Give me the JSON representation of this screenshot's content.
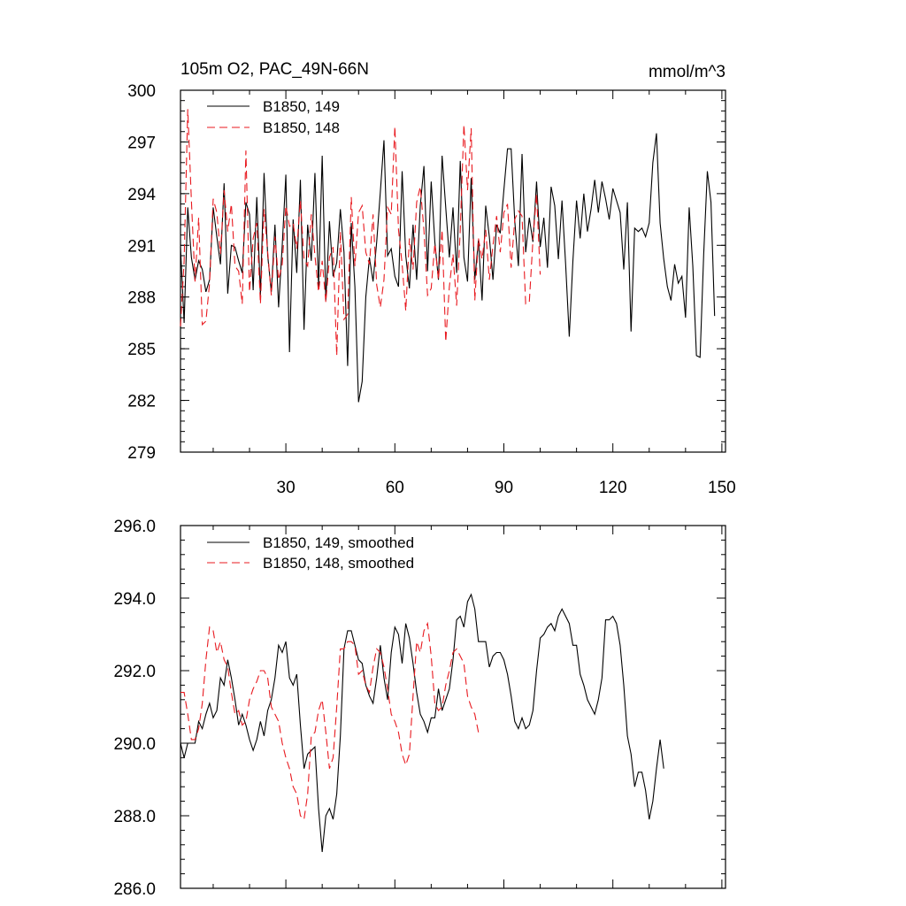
{
  "chart_data": [
    {
      "type": "line",
      "title": "105m O2, PAC_49N-66N",
      "units": "mmol/m^3",
      "ylim": [
        279,
        300
      ],
      "yticks": [
        "279",
        "282",
        "285",
        "288",
        "291",
        "294",
        "297",
        "300"
      ],
      "xlim": [
        1,
        151
      ],
      "xticks": [
        "30",
        "60",
        "90",
        "120",
        "150"
      ],
      "legend_position": "top-left",
      "series": [
        {
          "name": "B1850, 149",
          "color": "#000000",
          "style": "solid",
          "values": [
            290.9,
            286.5,
            293.2,
            290.3,
            289.0,
            290.1,
            289.6,
            288.3,
            289.0,
            293.2,
            291.5,
            289.9,
            294.6,
            288.2,
            291.0,
            290.9,
            290.1,
            289.4,
            293.5,
            292.8,
            288.4,
            293.8,
            288.1,
            295.2,
            290.4,
            288.3,
            292.2,
            287.4,
            291.0,
            295.1,
            284.8,
            292.5,
            289.4,
            294.8,
            286.1,
            292.2,
            290.1,
            295.2,
            288.6,
            296.2,
            287.8,
            292.4,
            289.2,
            290.0,
            293.1,
            290.6,
            284.0,
            292.3,
            288.6,
            281.9,
            283.1,
            288.0,
            290.3,
            288.9,
            291.2,
            294.1,
            297.1,
            290.4,
            290.8,
            289.2,
            288.6,
            295.3,
            290.4,
            288.5,
            292.2,
            289.0,
            293.3,
            295.6,
            289.5,
            294.7,
            291.2,
            289.0,
            296.2,
            293.2,
            290.3,
            293.2,
            289.4,
            295.9,
            290.3,
            288.9,
            294.9,
            289.0,
            291.3,
            287.8,
            293.3,
            291.5,
            289.0,
            292.2,
            291.7,
            294.2,
            296.6,
            296.6,
            292.4,
            289.8,
            296.3,
            290.6,
            292.6,
            291.2,
            294.7,
            290.9,
            292.6,
            289.7,
            294.4,
            293.3,
            290.2,
            293.6,
            289.9,
            285.7,
            290.1,
            293.6,
            291.4,
            294.0,
            291.8,
            293.1,
            294.8,
            292.9,
            294.7,
            293.7,
            292.5,
            294.3,
            293.6,
            292.9,
            289.6,
            293.5,
            286.0,
            292.0,
            291.8,
            292.0,
            291.5,
            292.3,
            295.8,
            297.5,
            292.3,
            290.2,
            288.6,
            287.8,
            289.9,
            288.8,
            289.2,
            286.8,
            293.2,
            289.8,
            284.6,
            284.5,
            290.5,
            295.3,
            293.5,
            286.9
          ]
        },
        {
          "name": "B1850, 148",
          "color": "#e8191f",
          "style": "dashed",
          "values": [
            286.3,
            290.1,
            298.9,
            293.6,
            288.9,
            292.6,
            286.4,
            286.6,
            288.8,
            293.7,
            292.9,
            290.5,
            294.2,
            291.8,
            293.4,
            289.8,
            289.5,
            287.6,
            296.5,
            288.3,
            291.4,
            292.3,
            287.6,
            293.1,
            290.6,
            288.1,
            291.5,
            289.0,
            289.9,
            293.3,
            292.1,
            292.3,
            290.8,
            293.6,
            290.2,
            289.8,
            292.8,
            290.4,
            288.3,
            290.1,
            287.7,
            290.3,
            290.9,
            284.6,
            291.8,
            286.7,
            287.0,
            293.8,
            289.8,
            292.9,
            293.3,
            290.6,
            289.9,
            292.8,
            288.7,
            287.4,
            289.0,
            293.2,
            292.8,
            297.9,
            291.9,
            289.9,
            287.2,
            291.4,
            289.6,
            293.5,
            294.4,
            291.9,
            288.1,
            288.5,
            291.1,
            289.0,
            291.9,
            285.4,
            288.6,
            290.5,
            287.5,
            291.9,
            298.0,
            294.2,
            297.8,
            287.8,
            291.4,
            290.2,
            291.9,
            289.0,
            291.0,
            292.7,
            290.6,
            292.9,
            293.4,
            289.7,
            292.5,
            293.0,
            292.7,
            287.6,
            287.7,
            291.3,
            294.0,
            289.3
          ]
        }
      ]
    },
    {
      "type": "line",
      "title": "",
      "ylim": [
        286.0,
        296.0
      ],
      "yticks": [
        "286.0",
        "288.0",
        "290.0",
        "292.0",
        "294.0",
        "296.0"
      ],
      "xlim": [
        1,
        151
      ],
      "legend_position": "top-left",
      "series": [
        {
          "name": "B1850, 149, smoothed",
          "color": "#000000",
          "style": "solid",
          "values": [
            290.0,
            289.6,
            290.0,
            290.0,
            290.0,
            290.6,
            290.4,
            290.8,
            291.1,
            290.7,
            290.9,
            291.8,
            291.6,
            292.3,
            291.8,
            291.2,
            290.5,
            290.8,
            290.5,
            290.1,
            289.8,
            290.1,
            290.6,
            290.2,
            290.9,
            291.2,
            291.8,
            292.7,
            292.5,
            292.8,
            291.8,
            291.6,
            291.9,
            290.5,
            289.3,
            289.7,
            289.8,
            289.9,
            288.2,
            287.0,
            288.0,
            288.2,
            287.9,
            288.6,
            290.2,
            292.6,
            293.1,
            293.1,
            292.7,
            292.3,
            292.2,
            291.6,
            291.3,
            291.1,
            291.8,
            292.7,
            291.8,
            291.2,
            292.5,
            293.2,
            293.0,
            292.2,
            293.3,
            292.9,
            292.2,
            291.4,
            290.8,
            290.6,
            290.3,
            290.7,
            290.7,
            291.5,
            290.9,
            291.2,
            291.5,
            292.3,
            293.4,
            293.5,
            293.2,
            293.9,
            294.1,
            293.7,
            292.8,
            292.8,
            292.8,
            292.1,
            292.4,
            292.5,
            292.5,
            292.3,
            291.9,
            291.3,
            290.6,
            290.4,
            290.7,
            290.4,
            290.5,
            290.9,
            292.0,
            292.9,
            293.0,
            293.2,
            293.3,
            293.1,
            293.5,
            293.7,
            293.5,
            293.3,
            292.7,
            292.7,
            291.9,
            291.6,
            291.2,
            291.0,
            290.8,
            291.2,
            291.8,
            293.4,
            293.4,
            293.5,
            293.3,
            292.7,
            291.6,
            290.2,
            289.7,
            288.8,
            289.2,
            289.2,
            288.7,
            287.9,
            288.4,
            289.3,
            290.1,
            289.3
          ]
        },
        {
          "name": "B1850, 148, smoothed",
          "color": "#e8191f",
          "style": "dashed",
          "values": [
            291.4,
            291.4,
            290.8,
            290.1,
            290.1,
            290.4,
            291.1,
            292.3,
            293.2,
            293.1,
            292.5,
            292.8,
            292.3,
            292.1,
            291.4,
            290.8,
            290.9,
            290.5,
            290.6,
            291.2,
            291.5,
            291.7,
            292.0,
            292.0,
            291.8,
            291.0,
            290.8,
            290.6,
            290.0,
            289.6,
            289.3,
            288.8,
            288.6,
            288.0,
            287.9,
            288.6,
            290.2,
            290.3,
            290.9,
            291.2,
            290.3,
            289.3,
            289.6,
            291.0,
            292.6,
            292.6,
            292.8,
            292.8,
            292.7,
            291.9,
            292.0,
            291.6,
            291.4,
            292.1,
            292.6,
            292.5,
            292.1,
            291.5,
            290.8,
            290.6,
            290.3,
            289.7,
            289.4,
            289.7,
            291.3,
            292.8,
            292.5,
            293.1,
            293.3,
            292.4,
            291.1,
            290.9,
            291.0,
            291.6,
            292.0,
            292.5,
            292.6,
            292.4,
            292.2,
            291.3,
            291.0,
            290.8,
            290.3
          ]
        }
      ]
    }
  ]
}
